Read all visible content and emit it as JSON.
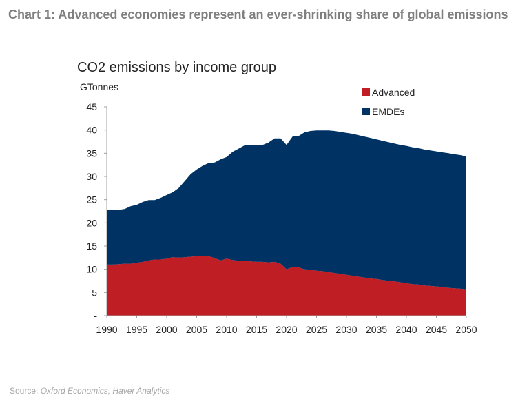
{
  "figure_title": "Chart 1: Advanced economies represent an ever-shrinking share of global emissions",
  "source_label": "Source:",
  "source_text": "Oxford Economics, Haver Analytics",
  "chart_data": {
    "type": "area",
    "stacked": true,
    "title": "CO2 emissions by income group",
    "ylabel": "GTonnes",
    "ylim": [
      0,
      45
    ],
    "yticks": [
      0,
      5,
      10,
      15,
      20,
      25,
      30,
      35,
      40,
      45
    ],
    "ytick_labels": [
      "-",
      "5",
      "10",
      "15",
      "20",
      "25",
      "30",
      "35",
      "40",
      "45"
    ],
    "xlim": [
      1990,
      2050
    ],
    "xticks": [
      1990,
      1995,
      2000,
      2005,
      2010,
      2015,
      2020,
      2025,
      2030,
      2035,
      2040,
      2045,
      2050
    ],
    "grid": false,
    "legend_position": "top-right",
    "x_start": 1990,
    "series": [
      {
        "name": "Advanced",
        "color": "#be1e24",
        "values": [
          11.0,
          11.0,
          11.1,
          11.2,
          11.2,
          11.4,
          11.6,
          11.9,
          12.1,
          12.1,
          12.3,
          12.6,
          12.5,
          12.6,
          12.7,
          12.8,
          12.8,
          12.8,
          12.4,
          11.9,
          12.3,
          12.0,
          11.8,
          11.8,
          11.7,
          11.6,
          11.6,
          11.5,
          11.6,
          11.2,
          10.0,
          10.5,
          10.4,
          10.0,
          9.9,
          9.7,
          9.6,
          9.4,
          9.2,
          9.0,
          8.8,
          8.6,
          8.4,
          8.2,
          8.0,
          7.9,
          7.7,
          7.5,
          7.4,
          7.2,
          7.0,
          6.8,
          6.7,
          6.5,
          6.4,
          6.3,
          6.2,
          6.0,
          5.9,
          5.8,
          5.7
        ]
      },
      {
        "name": "EMDEs",
        "color": "#003263",
        "values": [
          11.8,
          11.8,
          11.7,
          11.8,
          12.4,
          12.5,
          12.9,
          13.0,
          12.8,
          13.3,
          13.7,
          14.0,
          15.0,
          16.4,
          17.8,
          18.7,
          19.5,
          20.1,
          20.6,
          21.8,
          21.9,
          23.3,
          24.2,
          24.9,
          25.1,
          25.1,
          25.2,
          25.8,
          26.6,
          27.0,
          26.8,
          28.1,
          28.3,
          29.5,
          29.9,
          30.2,
          30.3,
          30.5,
          30.6,
          30.6,
          30.6,
          30.6,
          30.5,
          30.4,
          30.3,
          30.1,
          30.0,
          29.9,
          29.7,
          29.6,
          29.6,
          29.5,
          29.4,
          29.3,
          29.2,
          29.1,
          29.0,
          29.0,
          28.9,
          28.8,
          28.6
        ]
      }
    ]
  }
}
